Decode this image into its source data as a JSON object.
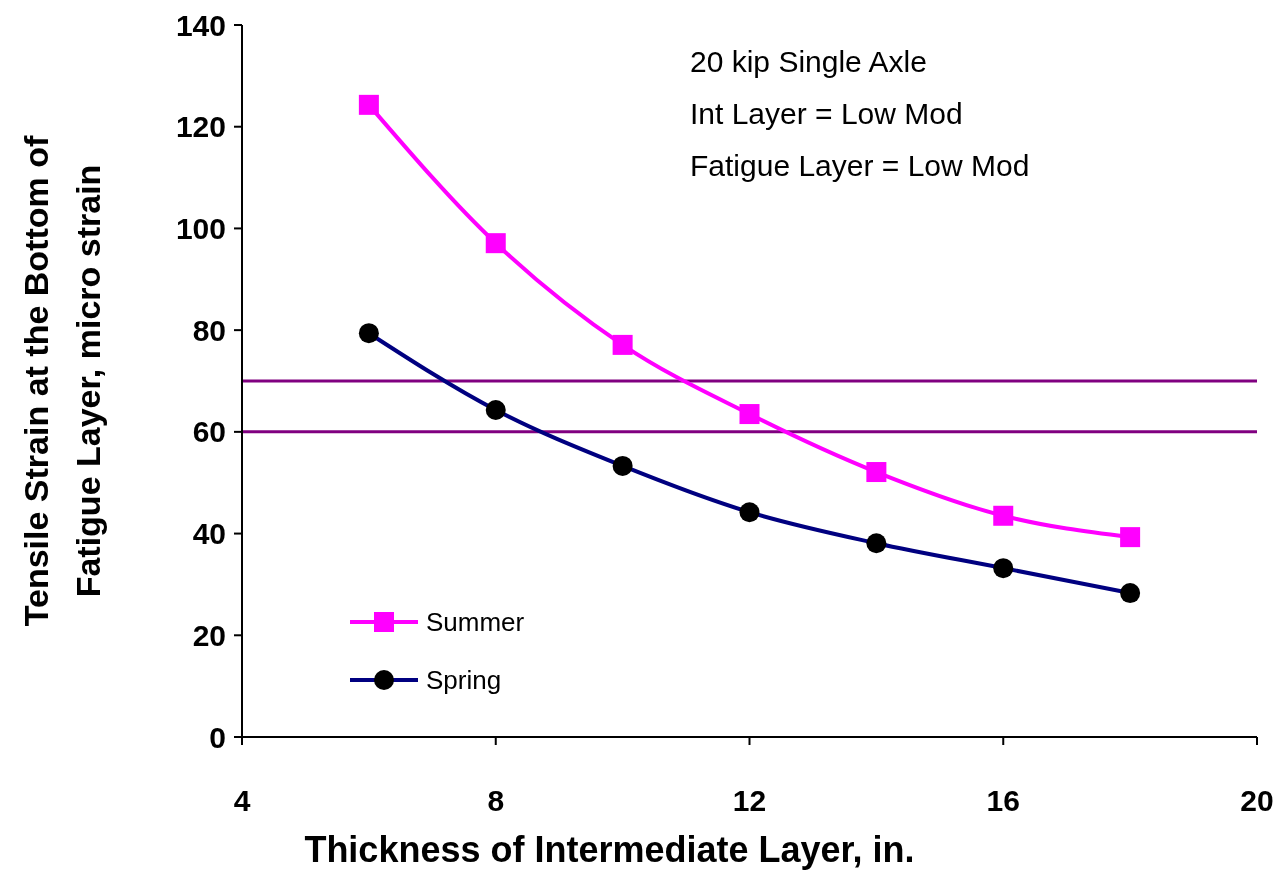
{
  "chart_data": {
    "type": "line",
    "xlabel": "Thickness of Intermediate Layer, in.",
    "ylabel": "Tensile Strain at the Bottom of\nFatigue Layer, micro strain",
    "x": [
      6,
      8,
      10,
      12,
      14,
      16,
      18
    ],
    "series": [
      {
        "name": "Summer",
        "color": "#ff00ff",
        "marker": "square",
        "values": [
          124.3,
          97.1,
          77.1,
          63.5,
          52.1,
          43.5,
          39.3
        ]
      },
      {
        "name": "Spring",
        "color": "#000080",
        "colors": [
          "#000000",
          "#000000",
          "#000000",
          "#000000",
          "#000000",
          "#000000",
          "#000000"
        ],
        "marker": "circle",
        "values": [
          79.4,
          64.3,
          53.3,
          44.2,
          38.1,
          33.2,
          28.3
        ]
      }
    ],
    "xlim": [
      4,
      20
    ],
    "xticks": [
      4,
      8,
      12,
      16,
      20
    ],
    "ylim": [
      0,
      140
    ],
    "yticks": [
      0,
      20,
      40,
      60,
      80,
      100,
      120,
      140
    ],
    "ref_lines": [
      {
        "axis": "y",
        "value": 70,
        "color": "#800080"
      },
      {
        "axis": "y",
        "value": 60,
        "color": "#800080"
      }
    ],
    "annotations": [
      "20 kip Single Axle",
      "Int Layer = Low Mod",
      "Fatigue Layer = Low Mod"
    ],
    "legend": "bottom left",
    "grid": false
  }
}
